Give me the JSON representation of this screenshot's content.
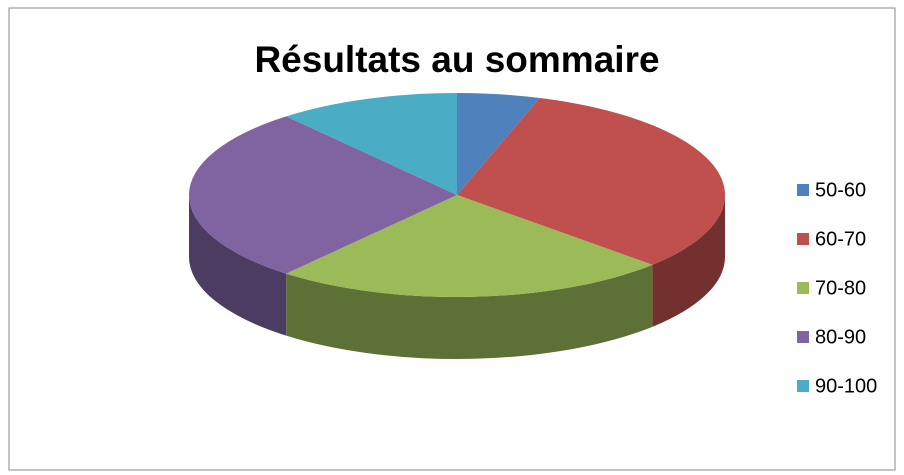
{
  "chart_data": {
    "type": "pie",
    "title": "Résultats au sommaire",
    "categories": [
      "50-60",
      "60-70",
      "70-80",
      "80-90",
      "90-100"
    ],
    "values": [
      5,
      32,
      24,
      28,
      11
    ],
    "colors": [
      "#4f81bd",
      "#c0504d",
      "#9bbb59",
      "#8064a2",
      "#4bacc6"
    ],
    "legend": "right"
  }
}
